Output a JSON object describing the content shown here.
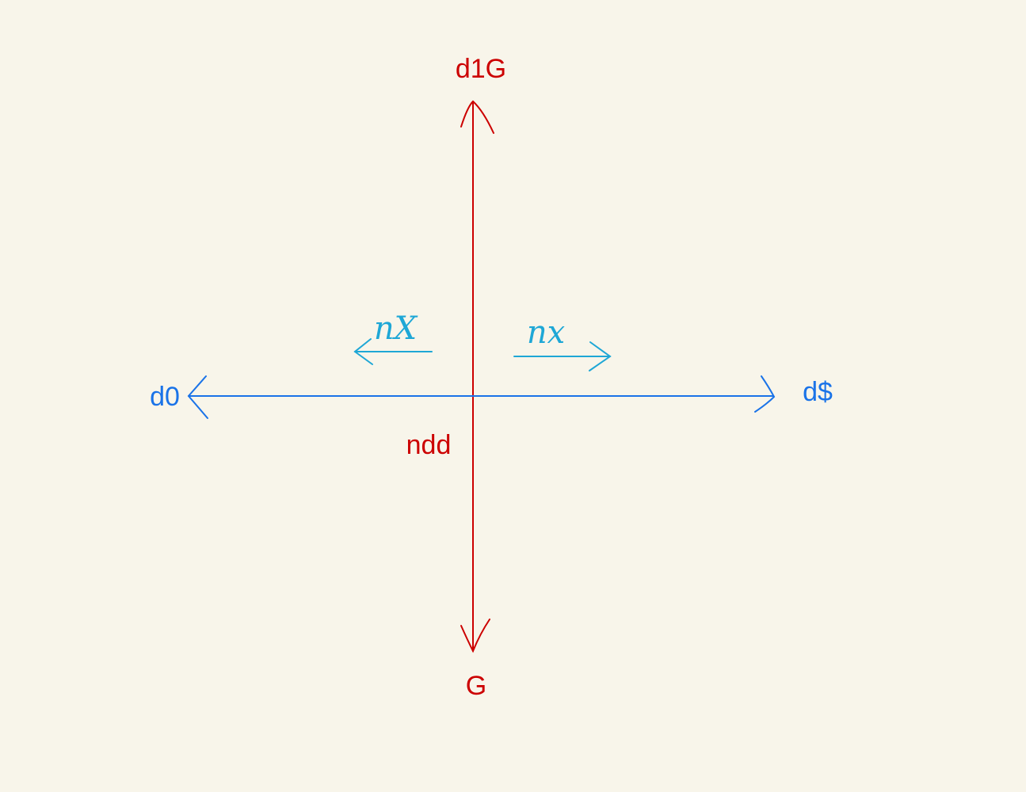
{
  "colors": {
    "background": "#f8f5ea",
    "vertical_axis": "#cc0000",
    "horizontal_axis": "#1a73e8",
    "direction_arrows": "#1ea7d6"
  },
  "labels": {
    "top": "d1G",
    "bottom": "G",
    "left": "d0",
    "right": "d$",
    "origin": "ndd",
    "left_arrow": "nX",
    "right_arrow": "nx"
  }
}
